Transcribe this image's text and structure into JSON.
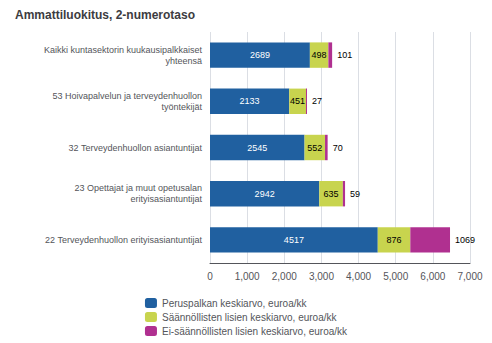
{
  "chart_data": {
    "type": "bar",
    "orientation": "horizontal",
    "stacked": true,
    "title": "Ammattiluokitus, 2-numerotaso",
    "categories": [
      "22 Terveydenhuollon erityisasiantuntijat",
      "23 Opettajat ja muut opetusalan\nerityisasiantuntijat",
      "32 Terveydenhuollon asiantuntijat",
      "53 Hoivapalvelun ja terveydenhuollon\ntyöntekijät",
      "Kaikki kuntasektorin kuukausipalkkaiset\nyhteensä"
    ],
    "series": [
      {
        "name": "Peruspalkan keskiarvo, euroa/kk",
        "color": "#2060a0",
        "values": [
          4517,
          2942,
          2545,
          2133,
          2689
        ]
      },
      {
        "name": "Säännöllisten lisien keskiarvo, euroa/kk",
        "color": "#c8d44e",
        "values": [
          876,
          635,
          552,
          451,
          498
        ]
      },
      {
        "name": "Ei-säännöllisten lisien keskiarvo, euroa/kk",
        "color": "#b03090",
        "values": [
          1069,
          59,
          70,
          27,
          101
        ]
      }
    ],
    "xlim": [
      0,
      7000
    ],
    "xticks": [
      0,
      1000,
      2000,
      3000,
      4000,
      5000,
      6000,
      7000
    ],
    "grid": true,
    "data_labels": true,
    "legend": "bottom"
  }
}
